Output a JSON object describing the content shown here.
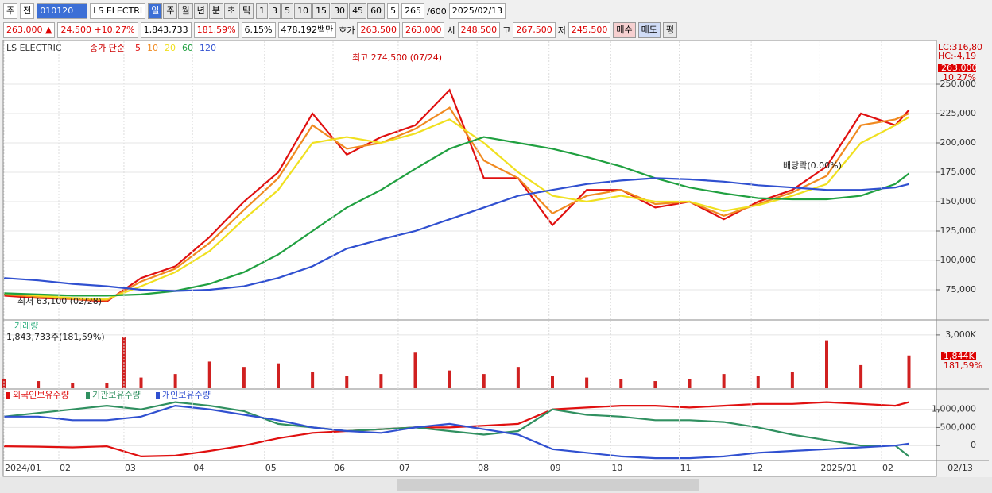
{
  "toolbar": {
    "market": "주",
    "prev": "전",
    "code": "010120",
    "name": "LS ELECTRI",
    "periods": [
      "일",
      "주",
      "월",
      "년",
      "분",
      "초",
      "틱"
    ],
    "intervals": [
      "1",
      "3",
      "5",
      "10",
      "15",
      "30",
      "45",
      "60"
    ],
    "count": "5",
    "shown": "265",
    "total": "/600",
    "date": "2025/02/13"
  },
  "quote": {
    "price": "263,000 ▲",
    "change": "24,500 +10.27%",
    "volume": "1,843,733",
    "volume_ratio": "181.59%",
    "turnover": "6.15%",
    "amount": "478,192백만",
    "ask_label": "호가",
    "ask": "263,500",
    "bid": "263,000",
    "open_label": "시",
    "open": "248,500",
    "high_label": "고",
    "high": "267,500",
    "low_label": "저",
    "low": "245,500",
    "buy": "매수",
    "sell": "매도",
    "avg": "평"
  },
  "legend": {
    "name": "LS ELECTRIC",
    "kind": "종가 단순"
  },
  "axis_footer": "02/13",
  "chart_data": [
    {
      "type": "line",
      "right_labels": [
        "LC:316,80",
        "HC:-4,19"
      ],
      "last_price_label": "263,000",
      "last_change_label": "10.27%",
      "annotations": [
        "최고 274,500 (07/24)",
        "최저 63,100 (02/28)",
        "배당락(0.00%)"
      ],
      "x": [
        0,
        10,
        20,
        30,
        40,
        50,
        60,
        70,
        80,
        90,
        100,
        110,
        120,
        130,
        140,
        150,
        160,
        170,
        180,
        190,
        200,
        210,
        220,
        230,
        240,
        250,
        260,
        264
      ],
      "xlim": [
        0,
        272
      ],
      "xticks": [
        {
          "value": 0,
          "label": "2024/01"
        },
        {
          "value": 16,
          "label": "02"
        },
        {
          "value": 35,
          "label": "03"
        },
        {
          "value": 55,
          "label": "04"
        },
        {
          "value": 76,
          "label": "05"
        },
        {
          "value": 96,
          "label": "06"
        },
        {
          "value": 115,
          "label": "07"
        },
        {
          "value": 138,
          "label": "08"
        },
        {
          "value": 159,
          "label": "09"
        },
        {
          "value": 177,
          "label": "10"
        },
        {
          "value": 197,
          "label": "11"
        },
        {
          "value": 218,
          "label": "12"
        },
        {
          "value": 238,
          "label": "2025/01"
        },
        {
          "value": 256,
          "label": "02"
        }
      ],
      "ylim": [
        50000,
        286500
      ],
      "yticks": [
        {
          "value": 75000,
          "label": "75,000"
        },
        {
          "value": 100000,
          "label": "100,000"
        },
        {
          "value": 125000,
          "label": "125,000"
        },
        {
          "value": 150000,
          "label": "150,000"
        },
        {
          "value": 175000,
          "label": "175,000"
        },
        {
          "value": 200000,
          "label": "200,000"
        },
        {
          "value": 225000,
          "label": "225,000"
        },
        {
          "value": 250000,
          "label": "250,000"
        }
      ],
      "grid": true,
      "series": [
        {
          "name": "5",
          "color": "#e01010",
          "values": [
            70000,
            68000,
            67000,
            65000,
            85000,
            95000,
            120000,
            150000,
            175000,
            225000,
            190000,
            205000,
            215000,
            245000,
            170000,
            170000,
            130000,
            160000,
            160000,
            145000,
            150000,
            135000,
            150000,
            160000,
            180000,
            225000,
            215000,
            228000
          ]
        },
        {
          "name": "10",
          "color": "#f08a20",
          "values": [
            71000,
            69000,
            67000,
            66000,
            82000,
            93000,
            115000,
            143000,
            170000,
            215000,
            195000,
            200000,
            212000,
            230000,
            185000,
            170000,
            140000,
            155000,
            160000,
            148000,
            150000,
            138000,
            148000,
            158000,
            172000,
            215000,
            220000,
            225000
          ]
        },
        {
          "name": "20",
          "color": "#f0e020",
          "values": [
            72000,
            70000,
            68000,
            67000,
            78000,
            90000,
            108000,
            135000,
            160000,
            200000,
            205000,
            200000,
            208000,
            220000,
            200000,
            175000,
            155000,
            150000,
            155000,
            150000,
            150000,
            142000,
            147000,
            155000,
            165000,
            200000,
            215000,
            222000
          ]
        },
        {
          "name": "60",
          "color": "#20a040",
          "values": [
            72000,
            71000,
            70000,
            70000,
            71000,
            74000,
            80000,
            90000,
            105000,
            125000,
            145000,
            160000,
            178000,
            195000,
            205000,
            200000,
            195000,
            188000,
            180000,
            170000,
            162000,
            157000,
            153000,
            152000,
            152000,
            155000,
            165000,
            174000
          ]
        },
        {
          "name": "120",
          "color": "#3050d0",
          "values": [
            85000,
            83000,
            80000,
            78000,
            75000,
            74000,
            75000,
            78000,
            85000,
            95000,
            110000,
            118000,
            125000,
            135000,
            145000,
            155000,
            160000,
            165000,
            168000,
            170000,
            169000,
            167000,
            164000,
            162000,
            160000,
            160000,
            162000,
            165000
          ]
        }
      ]
    },
    {
      "type": "bar",
      "title": "거래량",
      "subtitle": "1,843,733주(181,59%)",
      "last_label": "1,844K",
      "last_ratio_label": "181,59%",
      "color": "#d02020",
      "x": [
        0,
        10,
        20,
        30,
        35,
        40,
        50,
        60,
        70,
        80,
        90,
        100,
        110,
        120,
        130,
        140,
        150,
        160,
        170,
        180,
        190,
        200,
        210,
        220,
        230,
        240,
        250,
        264
      ],
      "xlim": [
        0,
        272
      ],
      "ylim": [
        0,
        3800
      ],
      "yticks": [
        {
          "value": 3000,
          "label": "3,000K"
        }
      ],
      "values": [
        500,
        400,
        300,
        300,
        2900,
        600,
        800,
        1500,
        1200,
        1400,
        900,
        700,
        800,
        2000,
        1000,
        800,
        1200,
        700,
        600,
        500,
        400,
        500,
        800,
        700,
        900,
        2700,
        1300,
        1844
      ]
    },
    {
      "type": "line",
      "x": [
        0,
        10,
        20,
        30,
        40,
        50,
        60,
        70,
        80,
        90,
        100,
        110,
        120,
        130,
        140,
        150,
        160,
        170,
        180,
        190,
        200,
        210,
        220,
        230,
        240,
        250,
        260,
        264
      ],
      "xlim": [
        0,
        272
      ],
      "ylim": [
        -413000,
        1520000
      ],
      "yticks": [
        {
          "value": 1000000,
          "label": "1,000,000"
        },
        {
          "value": 500000,
          "label": "500,000"
        },
        0
      ],
      "series": [
        {
          "name": "외국인보유수량",
          "color": "#e01010",
          "values": [
            -20000,
            -30000,
            -50000,
            -20000,
            -300000,
            -280000,
            -150000,
            0,
            200000,
            350000,
            400000,
            450000,
            500000,
            500000,
            550000,
            600000,
            1000000,
            1050000,
            1100000,
            1100000,
            1050000,
            1100000,
            1150000,
            1150000,
            1200000,
            1150000,
            1100000,
            1200000
          ]
        },
        {
          "name": "기관보유수량",
          "color": "#309060",
          "values": [
            800000,
            900000,
            1000000,
            1100000,
            1000000,
            1200000,
            1100000,
            950000,
            600000,
            500000,
            400000,
            450000,
            500000,
            400000,
            300000,
            400000,
            1000000,
            850000,
            800000,
            700000,
            700000,
            650000,
            500000,
            300000,
            150000,
            0,
            0,
            -300000
          ]
        },
        {
          "name": "개인보유수량",
          "color": "#3050d0",
          "values": [
            800000,
            800000,
            700000,
            700000,
            800000,
            1100000,
            1000000,
            850000,
            700000,
            500000,
            400000,
            350000,
            500000,
            600000,
            450000,
            300000,
            -100000,
            -200000,
            -300000,
            -350000,
            -350000,
            -300000,
            -200000,
            -150000,
            -100000,
            -50000,
            0,
            50000
          ]
        }
      ]
    }
  ]
}
